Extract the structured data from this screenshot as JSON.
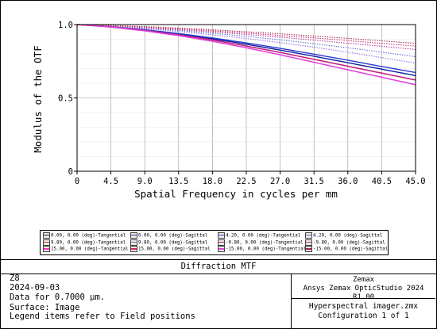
{
  "chart_data": {
    "type": "line",
    "title": "Diffraction MTF",
    "xlabel": "Spatial Frequency in cycles per mm",
    "ylabel": "Modulus of the OTF",
    "xlim": [
      0,
      45
    ],
    "ylim": [
      0,
      1.0
    ],
    "x_ticks": [
      "0",
      "4.5",
      "9.0",
      "13.5",
      "18.0",
      "22.5",
      "27.0",
      "31.5",
      "36.0",
      "40.5",
      "45.0"
    ],
    "y_ticks": [
      "0",
      "0.5",
      "1.0"
    ],
    "grid": true,
    "legend_placement": "bottom",
    "x": [
      0,
      4.5,
      9,
      13.5,
      18,
      22.5,
      27,
      31.5,
      36,
      40.5,
      45
    ],
    "series": [
      {
        "name": "0.00, 0.00 (deg)-Tangential",
        "color": "#0a1a8c",
        "dash": "solid",
        "values": [
          1.0,
          0.985,
          0.962,
          0.935,
          0.903,
          0.866,
          0.826,
          0.784,
          0.74,
          0.696,
          0.652
        ]
      },
      {
        "name": "0.00, 0.00 (deg)-Sagittal",
        "color": "#1a2cc0",
        "dash": "dot",
        "values": [
          1.0,
          0.985,
          0.962,
          0.935,
          0.903,
          0.866,
          0.826,
          0.784,
          0.74,
          0.696,
          0.652
        ]
      },
      {
        "name": "4.20, 0.00 (deg)-Tangential",
        "color": "#2a3ad0",
        "dash": "solid",
        "values": [
          1.0,
          0.986,
          0.965,
          0.939,
          0.909,
          0.875,
          0.838,
          0.798,
          0.757,
          0.714,
          0.673
        ]
      },
      {
        "name": "4.20, 0.00 (deg)-Sagittal",
        "color": "#5566d8",
        "dash": "dot",
        "values": [
          1.0,
          0.99,
          0.976,
          0.96,
          0.941,
          0.92,
          0.896,
          0.87,
          0.842,
          0.812,
          0.781
        ]
      },
      {
        "name": "9.80, 0.00 (deg)-Tangential",
        "color": "#e0202a",
        "dash": "solid",
        "values": [
          1.0,
          0.984,
          0.96,
          0.93,
          0.895,
          0.854,
          0.81,
          0.763,
          0.716,
          0.669,
          0.622
        ]
      },
      {
        "name": "9.80, 0.00 (deg)-Sagittal",
        "color": "#8866e0",
        "dash": "dot",
        "values": [
          1.0,
          0.988,
          0.972,
          0.953,
          0.93,
          0.905,
          0.877,
          0.846,
          0.812,
          0.775,
          0.737
        ]
      },
      {
        "name": "-9.80, 0.00 (deg)-Tangential",
        "color": "#c02080",
        "dash": "solid",
        "values": [
          1.0,
          0.984,
          0.96,
          0.93,
          0.895,
          0.854,
          0.81,
          0.763,
          0.716,
          0.669,
          0.622
        ]
      },
      {
        "name": "-9.80, 0.00 (deg)-Sagittal",
        "color": "#b03090",
        "dash": "dot",
        "values": [
          1.0,
          0.992,
          0.98,
          0.966,
          0.95,
          0.933,
          0.914,
          0.894,
          0.873,
          0.852,
          0.83
        ]
      },
      {
        "name": "15.00, 0.00 (deg)-Tangential",
        "color": "#ff33cc",
        "dash": "solid",
        "values": [
          1.0,
          0.983,
          0.957,
          0.925,
          0.886,
          0.842,
          0.794,
          0.743,
          0.692,
          0.641,
          0.59
        ]
      },
      {
        "name": "15.00, 0.00 (deg)-Sagittal",
        "color": "#cc2266",
        "dash": "dot",
        "values": [
          1.0,
          0.993,
          0.983,
          0.971,
          0.957,
          0.942,
          0.926,
          0.909,
          0.891,
          0.872,
          0.853
        ]
      },
      {
        "name": "-15.00, 0.00 (deg)-Tangential",
        "color": "#dd44dd",
        "dash": "solid",
        "values": [
          1.0,
          0.983,
          0.957,
          0.925,
          0.886,
          0.842,
          0.794,
          0.743,
          0.692,
          0.641,
          0.59
        ]
      },
      {
        "name": "-15.00, 0.00 (deg)-Sagittal",
        "color": "#a0204a",
        "dash": "dot",
        "values": [
          1.0,
          0.994,
          0.986,
          0.976,
          0.964,
          0.951,
          0.937,
          0.922,
          0.906,
          0.889,
          0.872
        ]
      }
    ]
  },
  "footer": {
    "title": "Diffraction MTF",
    "left_lines": [
      "Z8",
      "2024-09-03",
      "Data for 0.7000 µm.",
      "Surface: Image"
    ],
    "legend_note": "Legend items refer to Field positions",
    "right_top_lines": [
      "Zemax",
      "Ansys Zemax OpticStudio 2024 R1.00"
    ],
    "right_bottom_lines": [
      "Hyperspectral imager.zmx",
      "Configuration 1 of 1"
    ]
  }
}
